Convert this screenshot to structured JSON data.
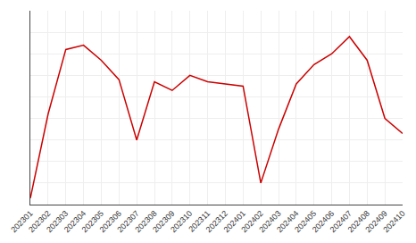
{
  "chart_data": {
    "type": "line",
    "categories": [
      "202301",
      "202302",
      "202303",
      "202304",
      "202305",
      "202306",
      "202307",
      "202308",
      "202309",
      "202310",
      "202311",
      "202312",
      "202401",
      "202402",
      "202403",
      "202404",
      "202405",
      "202406",
      "202407",
      "202408",
      "202409",
      "202410"
    ],
    "values": [
      3,
      42,
      72,
      74,
      67,
      58,
      30,
      57,
      53,
      60,
      57,
      56,
      55,
      10,
      35,
      56,
      65,
      70,
      78,
      67,
      40,
      33
    ],
    "color": "#cc0000",
    "ylim": [
      0,
      90
    ],
    "yticks": [
      0,
      10,
      20,
      30,
      40,
      50,
      60,
      70,
      80,
      90
    ],
    "grid": true,
    "tick_labels": "x"
  }
}
